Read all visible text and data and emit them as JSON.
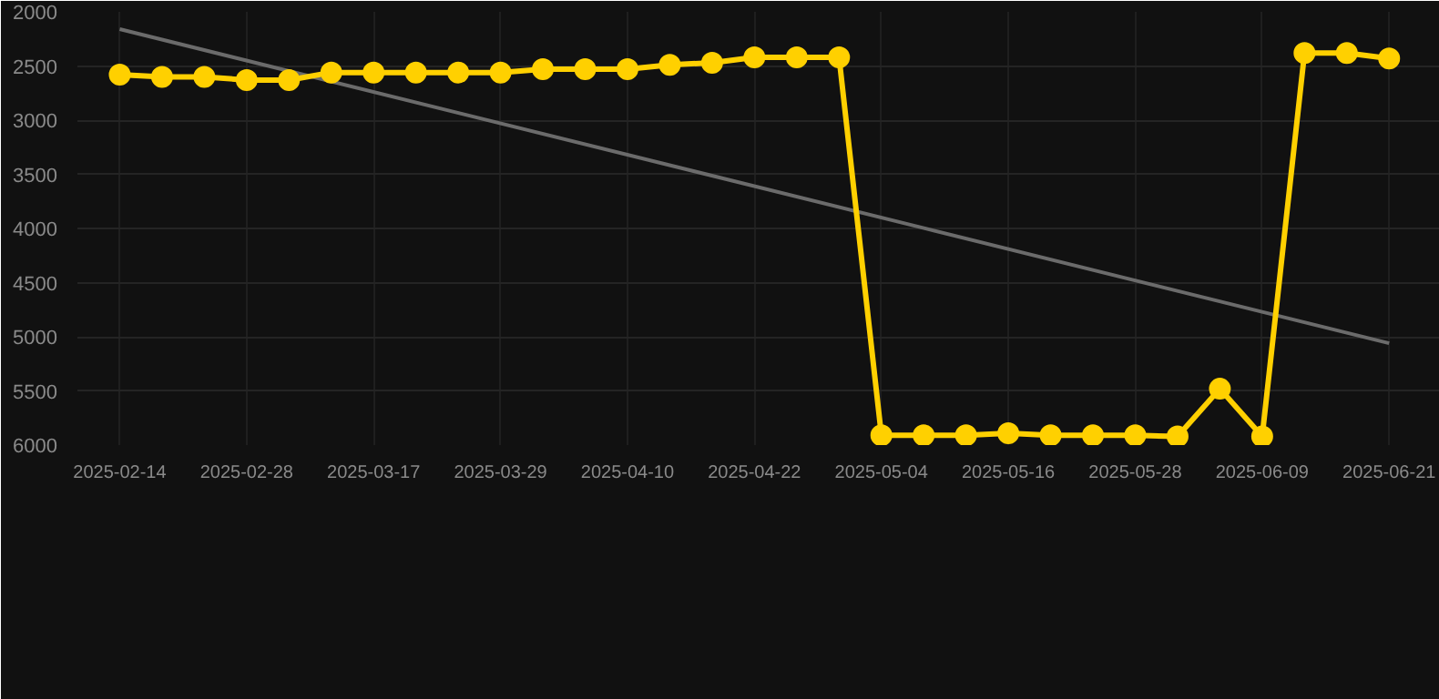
{
  "chart_data": {
    "type": "line",
    "categories": [
      "2025-02-14",
      null,
      null,
      "2025-02-28",
      null,
      null,
      "2025-03-17",
      null,
      null,
      "2025-03-29",
      null,
      null,
      "2025-04-10",
      null,
      null,
      "2025-04-22",
      null,
      null,
      "2025-05-04",
      null,
      null,
      "2025-05-16",
      null,
      null,
      "2025-05-28",
      null,
      null,
      "2025-06-09",
      null,
      null,
      "2025-06-21"
    ],
    "series": [
      {
        "color": "#ffd000",
        "marker": "circle",
        "values": [
          2580,
          2600,
          2600,
          2630,
          2630,
          2560,
          2560,
          2560,
          2560,
          2560,
          2530,
          2530,
          2530,
          2490,
          2470,
          2420,
          2420,
          2420,
          5910,
          5910,
          5910,
          5890,
          5910,
          5910,
          5910,
          5920,
          5480,
          5920,
          2380,
          2380,
          2430
        ]
      },
      {
        "color": "#6b6b6b",
        "marker": "none",
        "values": [
          2160,
          null,
          null,
          null,
          null,
          null,
          null,
          null,
          null,
          null,
          null,
          null,
          null,
          null,
          null,
          null,
          null,
          null,
          null,
          null,
          null,
          null,
          null,
          null,
          null,
          null,
          null,
          null,
          null,
          null,
          5060
        ]
      }
    ],
    "ylim": [
      6000,
      2000
    ],
    "yticks": [
      2000,
      2500,
      3000,
      3500,
      4000,
      4500,
      5000,
      5500,
      6000
    ],
    "grid": true
  }
}
